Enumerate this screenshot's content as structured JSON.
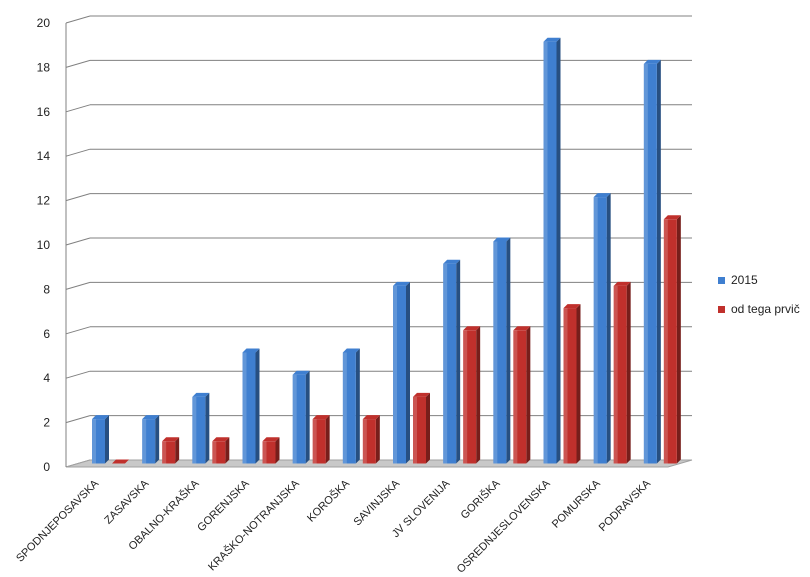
{
  "chart_data": {
    "type": "bar",
    "title": "",
    "xlabel": "",
    "ylabel": "",
    "ylim": [
      0,
      20
    ],
    "yticks": [
      0,
      2,
      4,
      6,
      8,
      10,
      12,
      14,
      16,
      18,
      20
    ],
    "grid": true,
    "legend_position": "right",
    "categories": [
      "SPODNJEPOSAVSKA",
      "ZASAVSKA",
      "OBALNO-KRAŠKA",
      "GORENJSKA",
      "KRAŠKO-NOTRANJSKA",
      "KOROŠKA",
      "SAVINJSKA",
      "JV SLOVENIJA",
      "GORIŠKA",
      "OSREDNJESLOVENSKA",
      "POMURSKA",
      "PODRAVSKA"
    ],
    "series": [
      {
        "name": "2015",
        "color": "#3F7FD0",
        "values": [
          2,
          2,
          3,
          5,
          4,
          5,
          8,
          9,
          10,
          19,
          12,
          18
        ]
      },
      {
        "name": "od tega prvič",
        "color": "#C0302C",
        "values": [
          0,
          1,
          1,
          1,
          2,
          2,
          3,
          6,
          6,
          7,
          8,
          11
        ]
      }
    ]
  }
}
